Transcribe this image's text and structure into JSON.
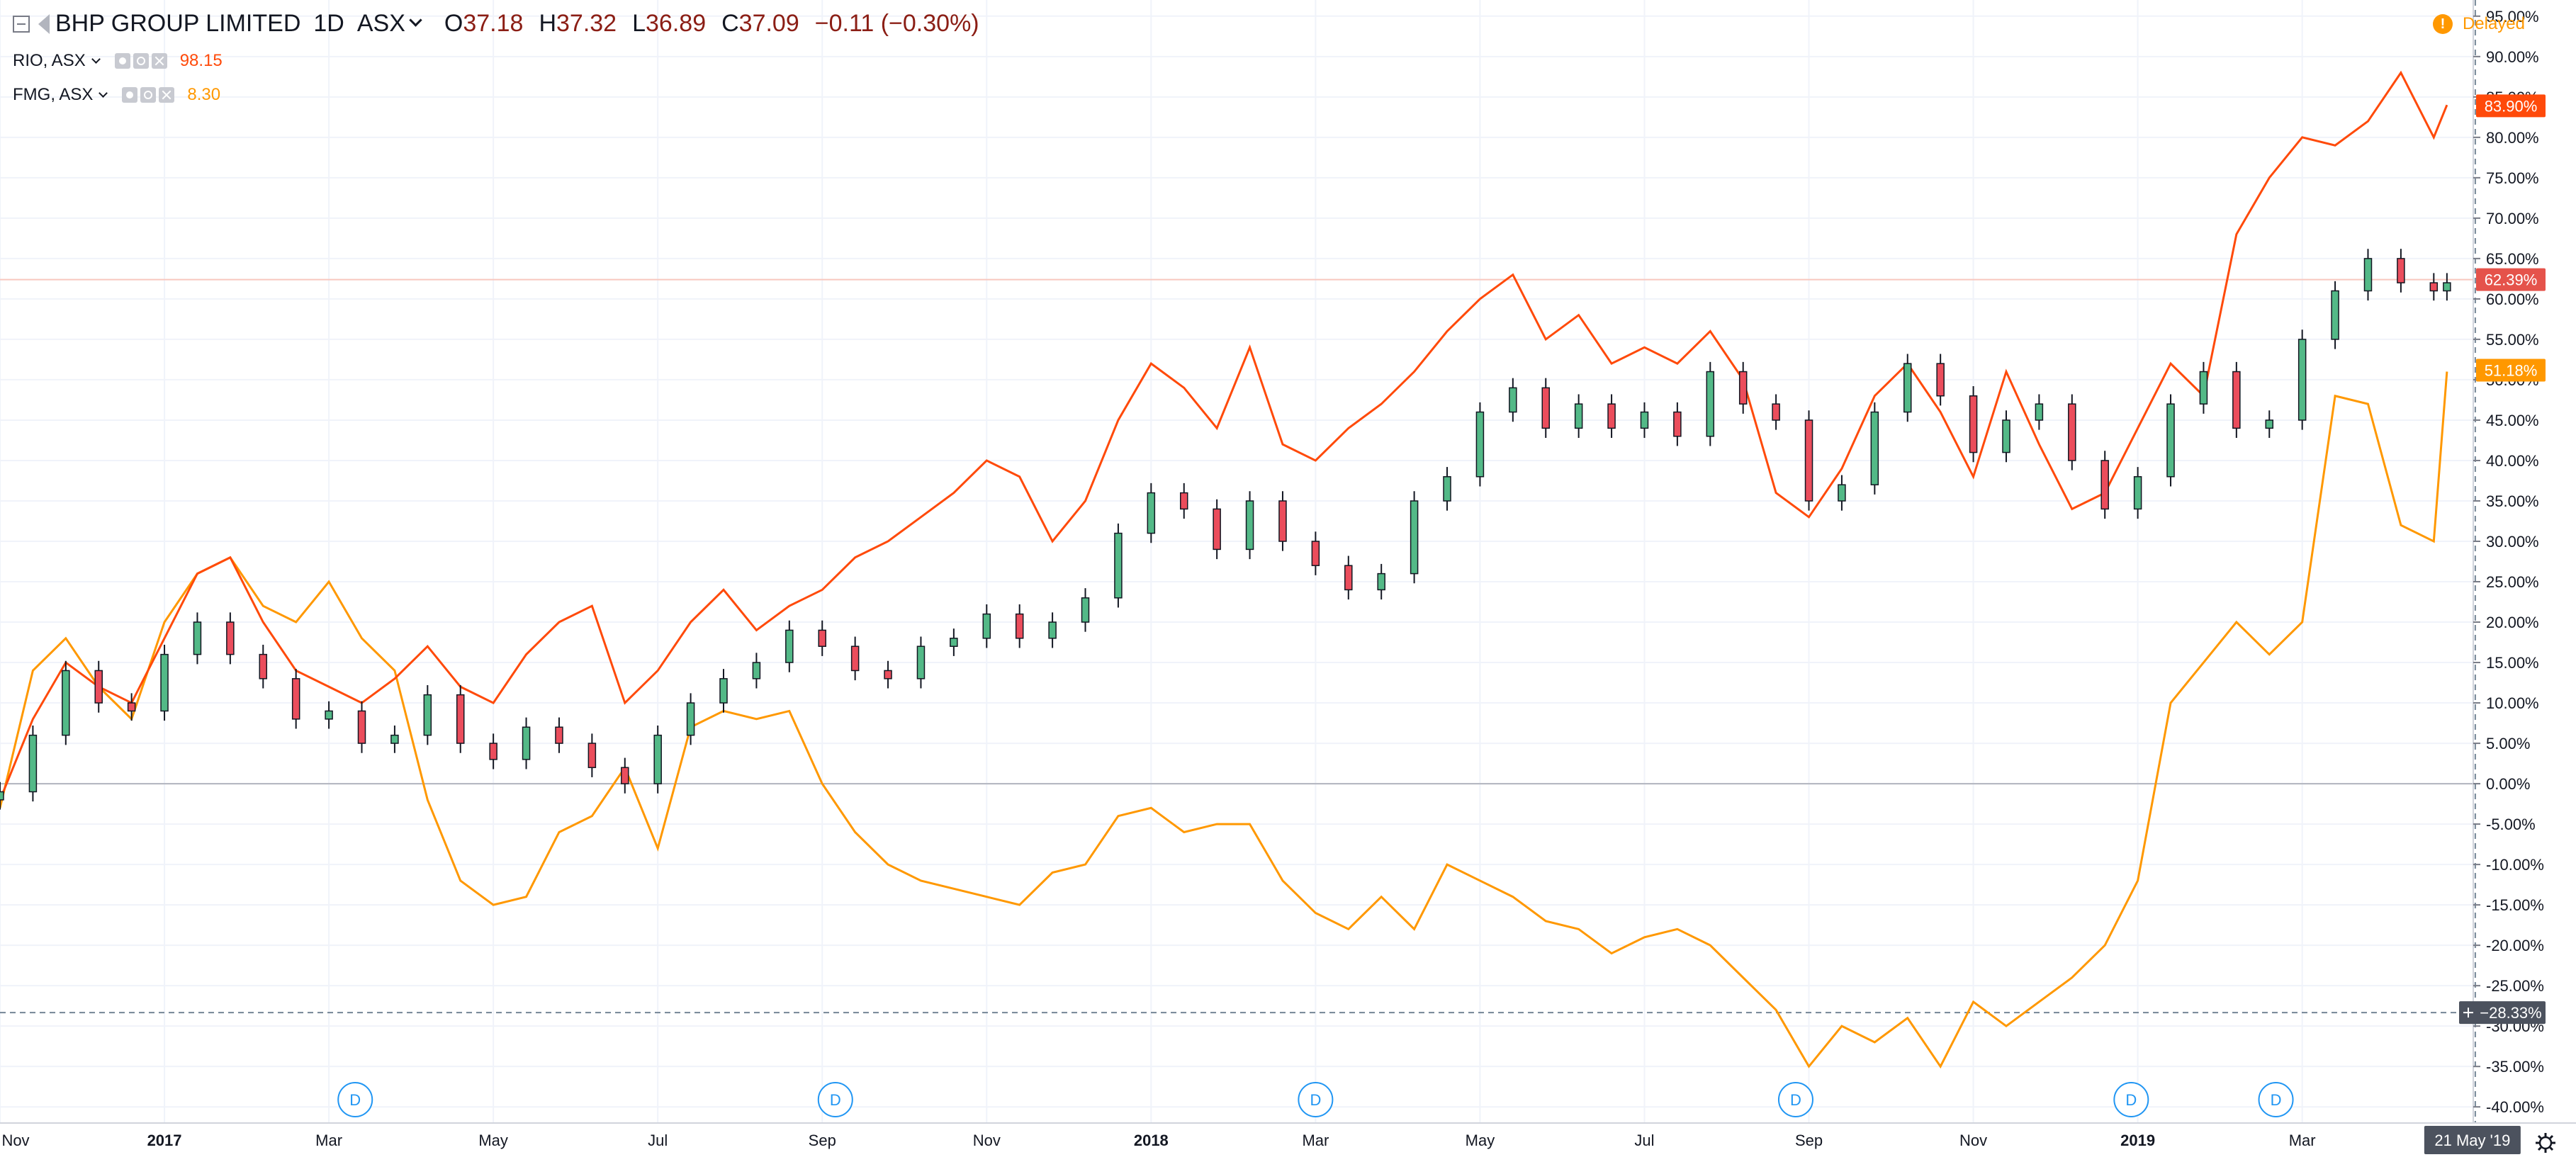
{
  "header": {
    "title": "BHP GROUP LIMITED",
    "interval": "1D",
    "exchange": "ASX",
    "open": "37.18",
    "high": "37.32",
    "low": "36.89",
    "close": "37.09",
    "change": "−0.11 (−0.30%)",
    "o_label": "O",
    "h_label": "H",
    "l_label": "L",
    "c_label": "C",
    "delayed_label": "Delayed"
  },
  "compare": [
    {
      "symbol": "RIO, ASX",
      "value": "98.15",
      "color": "#ff4a0a"
    },
    {
      "symbol": "FMG, ASX",
      "value": "8.30",
      "color": "#ff9800"
    }
  ],
  "colors": {
    "up": "#53b987",
    "down": "#eb4d5c",
    "wick": "#131722",
    "rio": "#ff4a0a",
    "fmg": "#ff9800",
    "zero_line": "#b2b5be",
    "grid": "#f0f3fa",
    "hline": "#f8c8bf"
  },
  "icons": [
    "collapse-icon",
    "flag-icon",
    "chevron-down-icon",
    "eye-icon",
    "gear-icon",
    "close-icon",
    "warning-icon",
    "dividend-icon",
    "crosshair-icon",
    "settings-icon"
  ],
  "chart_data": {
    "type": "line",
    "y_unit": "percent change",
    "ylim": [
      -42,
      97
    ],
    "y_ticks": [
      95,
      90,
      85,
      80,
      75,
      70,
      65,
      60,
      55,
      50,
      45,
      40,
      35,
      30,
      25,
      20,
      15,
      10,
      5,
      0,
      -5,
      -10,
      -15,
      -20,
      -25,
      -30,
      -35,
      -40
    ],
    "x_labels": [
      "Nov",
      "2017",
      "Mar",
      "May",
      "Jul",
      "Sep",
      "Nov",
      "2018",
      "Mar",
      "May",
      "Jul",
      "Sep",
      "Nov",
      "2019",
      "Mar"
    ],
    "x_label_pos": [
      0.0,
      0.25,
      0.5,
      0.75,
      1.0,
      1.25,
      1.5,
      1.75,
      2.0,
      2.25,
      2.5,
      2.75,
      3.0,
      3.25,
      3.5
    ],
    "x_range": [
      0,
      3.76
    ],
    "dividend_label": "D",
    "dividends_x": [
      0.54,
      1.27,
      2.0,
      2.73,
      3.24,
      3.46
    ],
    "price_labels": [
      {
        "value": 83.9,
        "text": "83.90%",
        "series": "RIO"
      },
      {
        "value": 62.39,
        "text": "62.39%",
        "series": "BHP"
      },
      {
        "value": 51.18,
        "text": "51.18%",
        "series": "FMG"
      }
    ],
    "crosshair_value": -28.33,
    "crosshair_label": "−28.33%",
    "crosshair_date": "21 May '19",
    "series": [
      {
        "name": "BHP",
        "style": "candlestick",
        "x": [
          0.0,
          0.05,
          0.1,
          0.15,
          0.2,
          0.25,
          0.3,
          0.35,
          0.4,
          0.45,
          0.5,
          0.55,
          0.6,
          0.65,
          0.7,
          0.75,
          0.8,
          0.85,
          0.9,
          0.95,
          1.0,
          1.05,
          1.1,
          1.15,
          1.2,
          1.25,
          1.3,
          1.35,
          1.4,
          1.45,
          1.5,
          1.55,
          1.6,
          1.65,
          1.7,
          1.75,
          1.8,
          1.85,
          1.9,
          1.95,
          2.0,
          2.05,
          2.1,
          2.15,
          2.2,
          2.25,
          2.3,
          2.35,
          2.4,
          2.45,
          2.5,
          2.55,
          2.6,
          2.65,
          2.7,
          2.75,
          2.8,
          2.85,
          2.9,
          2.95,
          3.0,
          3.05,
          3.1,
          3.15,
          3.2,
          3.25,
          3.3,
          3.35,
          3.4,
          3.45,
          3.5,
          3.55,
          3.6,
          3.65,
          3.7,
          3.72
        ],
        "values": [
          -1,
          6,
          14,
          10,
          9,
          16,
          20,
          16,
          13,
          8,
          9,
          5,
          6,
          11,
          5,
          3,
          7,
          5,
          2,
          0,
          6,
          10,
          13,
          15,
          19,
          17,
          14,
          13,
          17,
          18,
          21,
          18,
          20,
          23,
          31,
          36,
          34,
          29,
          35,
          30,
          27,
          24,
          26,
          35,
          38,
          46,
          49,
          44,
          47,
          44,
          46,
          43,
          51,
          47,
          45,
          35,
          37,
          46,
          52,
          48,
          41,
          45,
          47,
          40,
          34,
          38,
          47,
          51,
          44,
          45,
          55,
          61,
          65,
          62,
          61,
          62
        ]
      },
      {
        "name": "RIO",
        "style": "line",
        "x": [
          0.0,
          0.05,
          0.1,
          0.15,
          0.2,
          0.25,
          0.3,
          0.35,
          0.4,
          0.45,
          0.5,
          0.55,
          0.6,
          0.65,
          0.7,
          0.75,
          0.8,
          0.85,
          0.9,
          0.95,
          1.0,
          1.05,
          1.1,
          1.15,
          1.2,
          1.25,
          1.3,
          1.35,
          1.4,
          1.45,
          1.5,
          1.55,
          1.6,
          1.65,
          1.7,
          1.75,
          1.8,
          1.85,
          1.9,
          1.95,
          2.0,
          2.05,
          2.1,
          2.15,
          2.2,
          2.25,
          2.3,
          2.35,
          2.4,
          2.45,
          2.5,
          2.55,
          2.6,
          2.65,
          2.7,
          2.75,
          2.8,
          2.85,
          2.9,
          2.95,
          3.0,
          3.05,
          3.1,
          3.15,
          3.2,
          3.25,
          3.3,
          3.35,
          3.4,
          3.45,
          3.5,
          3.55,
          3.6,
          3.65,
          3.7,
          3.72
        ],
        "values": [
          -2,
          8,
          15,
          12,
          10,
          18,
          26,
          28,
          20,
          14,
          12,
          10,
          13,
          17,
          12,
          10,
          16,
          20,
          22,
          10,
          14,
          20,
          24,
          19,
          22,
          24,
          28,
          30,
          33,
          36,
          40,
          38,
          30,
          35,
          45,
          52,
          49,
          44,
          54,
          42,
          40,
          44,
          47,
          51,
          56,
          60,
          63,
          55,
          58,
          52,
          54,
          52,
          56,
          50,
          36,
          33,
          39,
          48,
          52,
          46,
          38,
          51,
          42,
          34,
          36,
          44,
          52,
          48,
          68,
          75,
          80,
          79,
          82,
          88,
          80,
          84
        ]
      },
      {
        "name": "FMG",
        "style": "line",
        "x": [
          0.0,
          0.05,
          0.1,
          0.15,
          0.2,
          0.25,
          0.3,
          0.35,
          0.4,
          0.45,
          0.5,
          0.55,
          0.6,
          0.65,
          0.7,
          0.75,
          0.8,
          0.85,
          0.9,
          0.95,
          1.0,
          1.05,
          1.1,
          1.15,
          1.2,
          1.25,
          1.3,
          1.35,
          1.4,
          1.45,
          1.5,
          1.55,
          1.6,
          1.65,
          1.7,
          1.75,
          1.8,
          1.85,
          1.9,
          1.95,
          2.0,
          2.05,
          2.1,
          2.15,
          2.2,
          2.25,
          2.3,
          2.35,
          2.4,
          2.45,
          2.5,
          2.55,
          2.6,
          2.65,
          2.7,
          2.75,
          2.8,
          2.85,
          2.9,
          2.95,
          3.0,
          3.05,
          3.1,
          3.15,
          3.2,
          3.25,
          3.3,
          3.35,
          3.4,
          3.45,
          3.5,
          3.55,
          3.6,
          3.65,
          3.7,
          3.72
        ],
        "values": [
          -3,
          14,
          18,
          12,
          8,
          20,
          26,
          28,
          22,
          20,
          25,
          18,
          14,
          -2,
          -12,
          -15,
          -14,
          -6,
          -4,
          2,
          -8,
          7,
          9,
          8,
          9,
          0,
          -6,
          -10,
          -12,
          -13,
          -14,
          -15,
          -11,
          -10,
          -4,
          -3,
          -6,
          -5,
          -5,
          -12,
          -16,
          -18,
          -14,
          -18,
          -10,
          -12,
          -14,
          -17,
          -18,
          -21,
          -19,
          -18,
          -20,
          -24,
          -28,
          -35,
          -30,
          -32,
          -29,
          -35,
          -27,
          -30,
          -27,
          -24,
          -20,
          -12,
          10,
          15,
          20,
          16,
          20,
          48,
          47,
          32,
          30,
          51
        ]
      }
    ]
  }
}
